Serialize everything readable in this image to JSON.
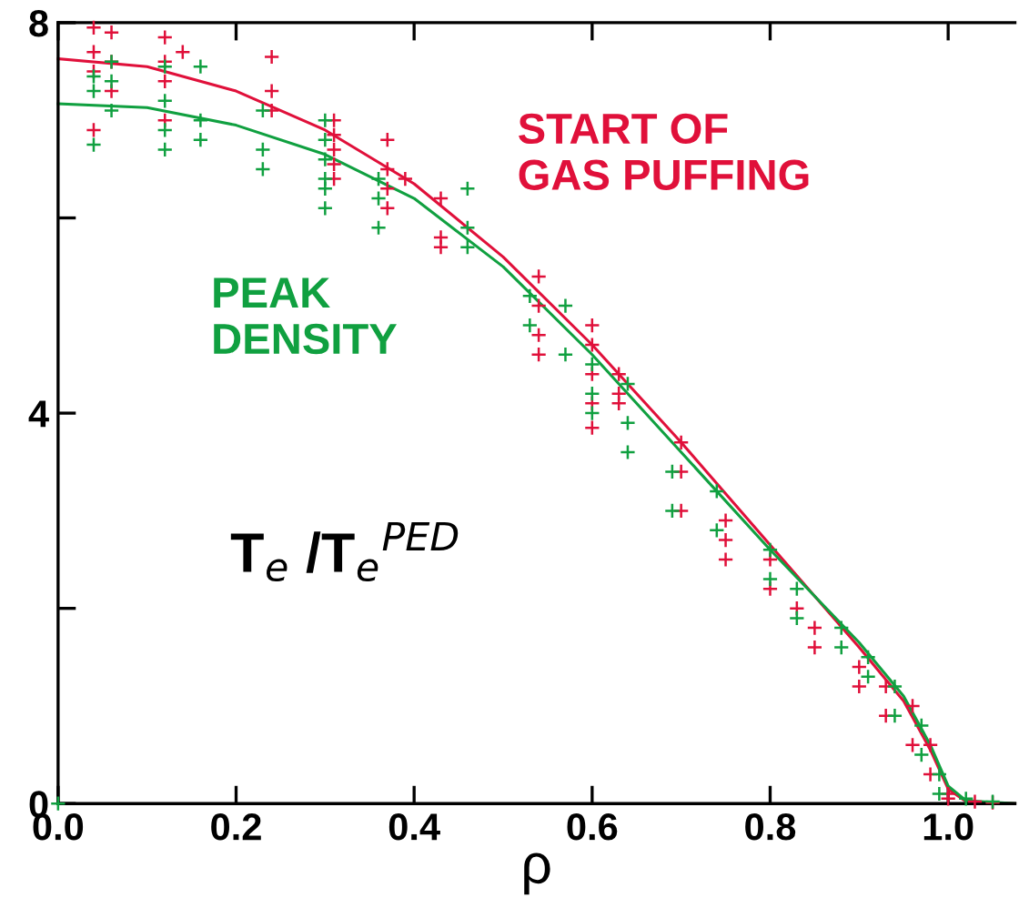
{
  "chart_data": {
    "type": "scatter",
    "xlabel": "ρ",
    "annotations": [
      "T$_{e}$ /T$_{e}$$^{PED}$"
    ],
    "xlim": [
      0.0,
      1.075
    ],
    "ylim": [
      0,
      8
    ],
    "xticks": [
      {
        "value": 0.0,
        "label": "0.0"
      },
      {
        "value": 0.2,
        "label": "0.2"
      },
      {
        "value": 0.4,
        "label": "0.4"
      },
      {
        "value": 0.6,
        "label": "0.6"
      },
      {
        "value": 0.8,
        "label": "0.8"
      },
      {
        "value": 1.0,
        "label": "1.0"
      }
    ],
    "yticks": [
      0,
      {
        "value": 2,
        "label": null
      },
      4,
      {
        "value": 6,
        "label": null
      },
      8
    ],
    "grid": false,
    "series": [
      {
        "marker": "cross",
        "name": "START OF\nGAS PUFFING",
        "color": "#e0103a",
        "x": [
          0.04,
          0.04,
          0.04,
          0.04,
          0.06,
          0.06,
          0.06,
          0.12,
          0.12,
          0.12,
          0.12,
          0.14,
          0.24,
          0.24,
          0.24,
          0.31,
          0.31,
          0.31,
          0.31,
          0.31,
          0.37,
          0.37,
          0.37,
          0.37,
          0.39,
          0.43,
          0.43,
          0.43,
          0.54,
          0.54,
          0.54,
          0.54,
          0.6,
          0.6,
          0.6,
          0.6,
          0.6,
          0.63,
          0.63,
          0.63,
          0.7,
          0.7,
          0.7,
          0.75,
          0.75,
          0.75,
          0.8,
          0.8,
          0.83,
          0.85,
          0.85,
          0.9,
          0.9,
          0.93,
          0.93,
          0.96,
          0.96,
          0.98,
          0.98,
          1.0,
          1.0,
          1.03,
          1.05
        ],
        "values": [
          7.95,
          7.7,
          7.5,
          6.9,
          7.9,
          7.6,
          7.3,
          7.6,
          7.4,
          7.0,
          7.85,
          7.7,
          7.65,
          7.3,
          7.1,
          7.0,
          6.85,
          6.7,
          6.55,
          6.4,
          6.8,
          6.3,
          6.1,
          6.5,
          6.4,
          6.2,
          5.8,
          5.7,
          5.4,
          5.1,
          4.8,
          4.6,
          4.9,
          4.7,
          4.4,
          4.1,
          3.85,
          4.4,
          4.1,
          4.2,
          3.7,
          3.4,
          3.0,
          2.9,
          2.7,
          2.5,
          2.5,
          2.2,
          2.0,
          1.8,
          1.6,
          1.4,
          1.2,
          1.2,
          0.9,
          1.0,
          0.6,
          0.6,
          0.3,
          0.1,
          0.05,
          0.02,
          0.01
        ]
      },
      {
        "marker": "cross",
        "name": "PEAK\nDENSITY",
        "color": "#10a040",
        "x": [
          0.0,
          0.04,
          0.04,
          0.04,
          0.06,
          0.06,
          0.06,
          0.12,
          0.12,
          0.12,
          0.12,
          0.16,
          0.16,
          0.16,
          0.23,
          0.23,
          0.23,
          0.3,
          0.3,
          0.3,
          0.3,
          0.3,
          0.3,
          0.36,
          0.36,
          0.36,
          0.46,
          0.46,
          0.46,
          0.53,
          0.53,
          0.57,
          0.57,
          0.6,
          0.6,
          0.6,
          0.64,
          0.64,
          0.64,
          0.69,
          0.69,
          0.74,
          0.74,
          0.8,
          0.8,
          0.83,
          0.83,
          0.88,
          0.88,
          0.91,
          0.91,
          0.94,
          0.94,
          0.97,
          0.97,
          0.99,
          0.99,
          1.02,
          1.05
        ],
        "values": [
          0.0,
          7.45,
          7.3,
          6.75,
          7.6,
          7.4,
          7.1,
          7.2,
          6.9,
          6.7,
          7.55,
          7.0,
          6.8,
          7.55,
          7.1,
          6.7,
          6.5,
          7.0,
          6.8,
          6.6,
          6.4,
          6.3,
          6.1,
          6.4,
          6.2,
          5.9,
          6.3,
          5.9,
          5.7,
          5.2,
          4.9,
          5.1,
          4.6,
          4.5,
          4.2,
          4.0,
          4.3,
          3.9,
          3.6,
          3.4,
          3.0,
          3.2,
          2.8,
          2.6,
          2.3,
          2.2,
          1.9,
          1.8,
          1.6,
          1.5,
          1.3,
          1.2,
          0.9,
          0.8,
          0.5,
          0.3,
          0.1,
          0.05,
          0.02
        ]
      },
      {
        "type": "line",
        "marker": "none",
        "color": "#e0103a",
        "x": [
          0.0,
          0.1,
          0.2,
          0.3,
          0.4,
          0.5,
          0.6,
          0.7,
          0.8,
          0.9,
          0.95,
          0.98,
          1.0,
          1.02,
          1.075
        ],
        "values": [
          7.63,
          7.55,
          7.3,
          6.9,
          6.35,
          5.6,
          4.7,
          3.7,
          2.65,
          1.6,
          1.05,
          0.55,
          0.15,
          0.02,
          0
        ]
      },
      {
        "type": "line",
        "marker": "none",
        "color": "#10a040",
        "x": [
          0.0,
          0.1,
          0.2,
          0.3,
          0.4,
          0.5,
          0.6,
          0.7,
          0.8,
          0.9,
          0.95,
          0.98,
          1.0,
          1.02,
          1.075
        ],
        "values": [
          7.17,
          7.13,
          6.95,
          6.65,
          6.2,
          5.5,
          4.6,
          3.6,
          2.6,
          1.65,
          1.1,
          0.6,
          0.18,
          0.03,
          0
        ]
      }
    ]
  }
}
